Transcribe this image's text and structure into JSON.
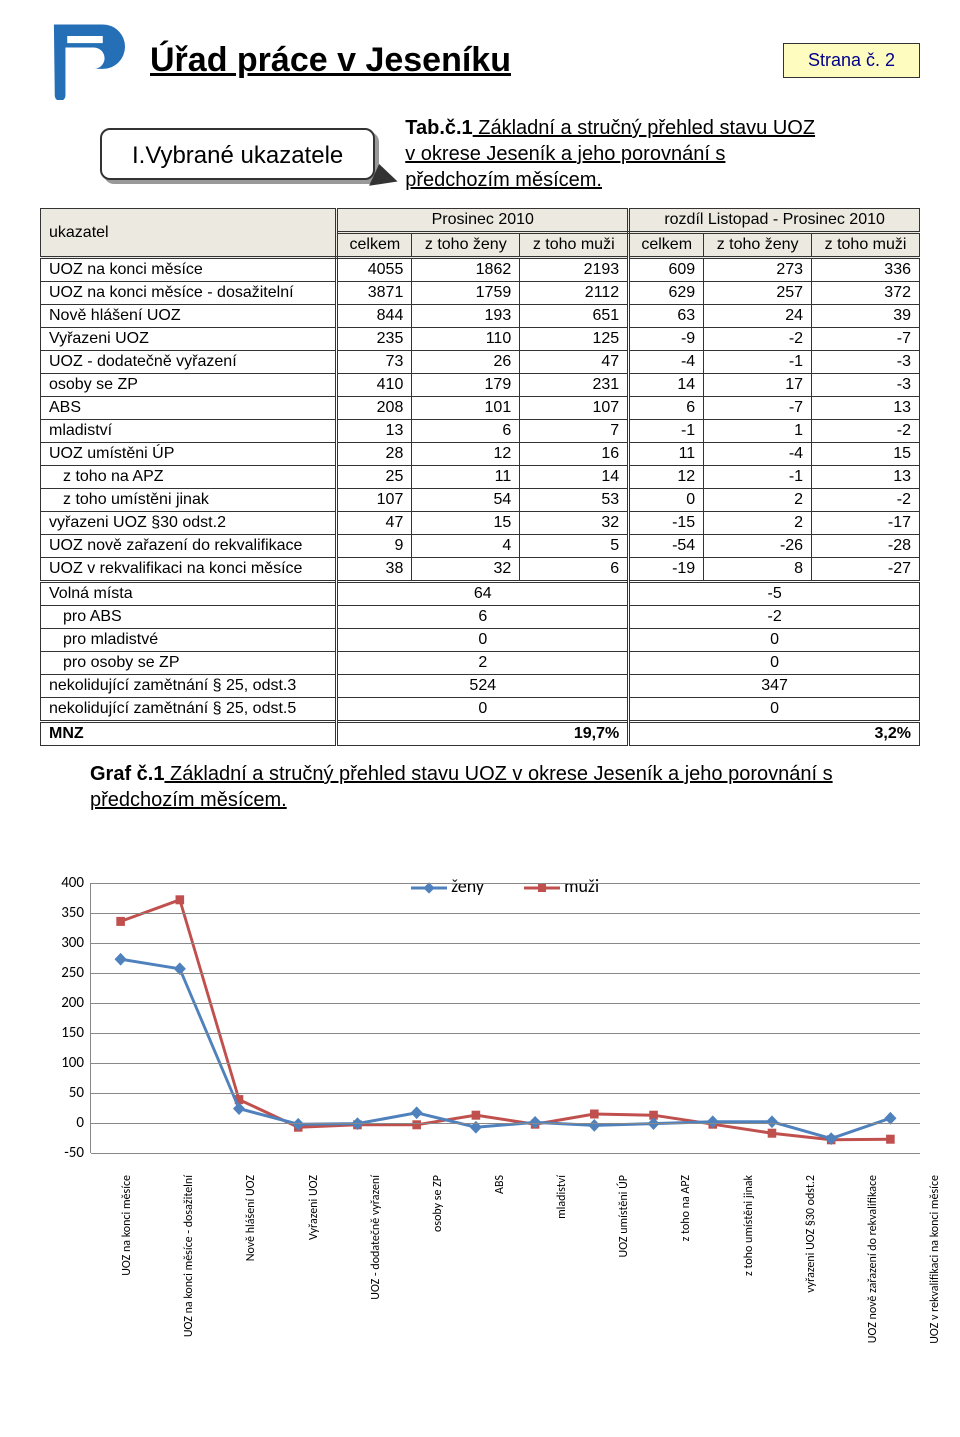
{
  "page": {
    "title": "Úřad práce v Jeseníku",
    "strana": "Strana č. 2"
  },
  "callout": "I.Vybrané ukazatele",
  "tabCaption": {
    "lead": "Tab.č.1",
    "body": " Základní a stručný přehled stavu UOZ v okrese Jeseník a jeho porovnání s  předchozím měsícem."
  },
  "grafCaption": {
    "lead": "Graf č.1",
    "body": " Základní a stručný přehled stavu UOZ v okrese Jeseník a jeho porovnání s  předchozím měsícem."
  },
  "table": {
    "cornerLabel": "ukazatel",
    "group1": "Prosinec 2010",
    "group2": "rozdíl Listopad - Prosinec 2010",
    "cols": [
      "celkem",
      "z toho ženy",
      "z toho muži",
      "celkem",
      "z toho ženy",
      "z toho muži"
    ],
    "rows": [
      {
        "label": "UOZ na konci měsíce",
        "v": [
          4055,
          1862,
          2193,
          609,
          273,
          336
        ]
      },
      {
        "label": "UOZ na konci měsíce - dosažitelní",
        "v": [
          3871,
          1759,
          2112,
          629,
          257,
          372
        ]
      },
      {
        "label": "Nově hlášení UOZ",
        "v": [
          844,
          193,
          651,
          63,
          24,
          39
        ]
      },
      {
        "label": "Vyřazeni UOZ",
        "v": [
          235,
          110,
          125,
          -9,
          -2,
          -7
        ]
      },
      {
        "label": "UOZ - dodatečně vyřazení",
        "v": [
          73,
          26,
          47,
          -4,
          -1,
          -3
        ]
      },
      {
        "label": "osoby se ZP",
        "v": [
          410,
          179,
          231,
          14,
          17,
          -3
        ]
      },
      {
        "label": "ABS",
        "v": [
          208,
          101,
          107,
          6,
          -7,
          13
        ]
      },
      {
        "label": "mladiství",
        "v": [
          13,
          6,
          7,
          -1,
          1,
          -2
        ]
      },
      {
        "label": "UOZ umístěni ÚP",
        "v": [
          28,
          12,
          16,
          11,
          -4,
          15
        ]
      },
      {
        "label": "z toho na APZ",
        "indent": 1,
        "v": [
          25,
          11,
          14,
          12,
          -1,
          13
        ]
      },
      {
        "label": "z toho umístěni jinak",
        "indent": 1,
        "v": [
          107,
          54,
          53,
          0,
          2,
          -2
        ]
      },
      {
        "label": "vyřazeni UOZ §30 odst.2",
        "v": [
          47,
          15,
          32,
          -15,
          2,
          -17
        ]
      },
      {
        "label": "UOZ nově zařazení do rekvalifikace",
        "v": [
          9,
          4,
          5,
          -54,
          -26,
          -28
        ]
      },
      {
        "label": "UOZ v rekvalifikaci na konci měsíce",
        "v": [
          38,
          32,
          6,
          -19,
          8,
          -27
        ]
      }
    ],
    "rows2": [
      {
        "label": "Volná místa",
        "a": 64,
        "b": -5
      },
      {
        "label": "pro ABS",
        "indent": 1,
        "a": 6,
        "b": -2
      },
      {
        "label": "pro mladistvé",
        "indent": 1,
        "a": 0,
        "b": 0
      },
      {
        "label": "pro osoby se ZP",
        "indent": 1,
        "a": 2,
        "b": 0
      },
      {
        "label": "nekolidující zamětnání § 25, odst.3",
        "a": 524,
        "b": 347
      },
      {
        "label": "nekolidující zamětnání § 25, odst.5",
        "a": 0,
        "b": 0
      }
    ],
    "mnz": {
      "label": "MNZ",
      "a": "19,7%",
      "b": "3,2%"
    }
  },
  "chart": {
    "legend": {
      "zeny": "ženy",
      "muzi": "muži"
    },
    "ylim": [
      -50,
      400
    ],
    "ytick_step": 50,
    "grid_color": "#888888",
    "background_color": "#ffffff",
    "categories": [
      "UOZ na konci měsíce",
      "UOZ na konci měsíce - dosažitelní",
      "Nově hlášení UOZ",
      "Vyřazeni UOZ",
      "UOZ - dodatečně vyřazení",
      "osoby se ZP",
      "ABS",
      "mladiství",
      "UOZ umístěni ÚP",
      "z toho na APZ",
      "z toho umístěni jinak",
      "vyřazeni UOZ §30 odst.2",
      "UOZ nově zařazení do\nrekvalifikace",
      "UOZ v rekvalifikaci na konci\nměsíce"
    ],
    "series": {
      "zeny": {
        "label": "ženy",
        "color": "#4f81bd",
        "marker": "diamond",
        "marker_size": 9,
        "line_width": 3,
        "values": [
          273,
          257,
          24,
          -2,
          -1,
          17,
          -7,
          1,
          -4,
          -1,
          2,
          2,
          -26,
          8
        ]
      },
      "muzi": {
        "label": "muži",
        "color": "#c0504d",
        "marker": "square",
        "marker_size": 9,
        "line_width": 3,
        "values": [
          336,
          372,
          39,
          -7,
          -3,
          -3,
          13,
          -2,
          15,
          13,
          -2,
          -17,
          -28,
          -27
        ]
      }
    }
  },
  "logo_colors": {
    "main": "#246fb5",
    "accent": "#ffffff"
  }
}
